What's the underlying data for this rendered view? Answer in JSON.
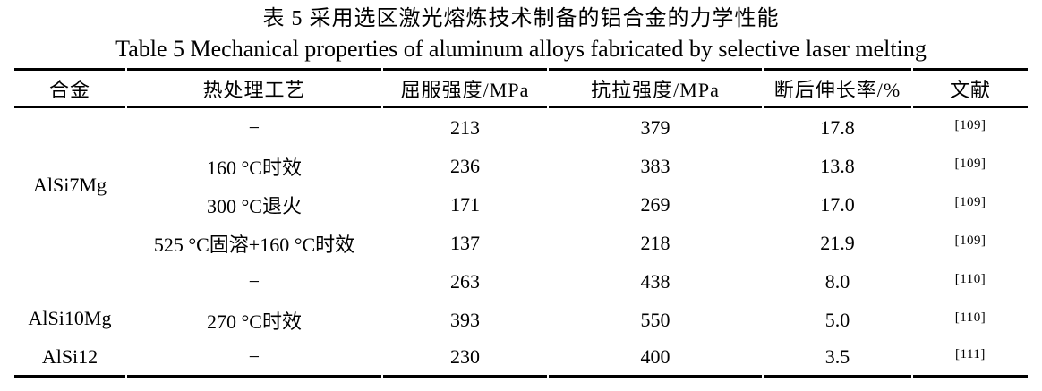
{
  "captions": {
    "zh": "表 5 采用选区激光熔炼技术制备的铝合金的力学性能",
    "en": "Table 5 Mechanical properties of aluminum alloys fabricated by selective laser melting"
  },
  "colors": {
    "text": "#000000",
    "background": "#ffffff",
    "rule": "#000000"
  },
  "table": {
    "headers": [
      "合金",
      "热处理工艺",
      "屈服强度/MPa",
      "抗拉强度/MPa",
      "断后伸长率/%",
      "文献"
    ],
    "alloys": [
      {
        "name": "AlSi7Mg",
        "rowspan": 4
      },
      {
        "name": "AlSi10Mg",
        "rowspan": 2
      },
      {
        "name": "AlSi12",
        "rowspan": 1
      }
    ],
    "rows": [
      {
        "treatment": "−",
        "yield_mpa": "213",
        "tensile_mpa": "379",
        "elongation_pct": "17.8",
        "reference": "[109]"
      },
      {
        "treatment": "160 °C时效",
        "yield_mpa": "236",
        "tensile_mpa": "383",
        "elongation_pct": "13.8",
        "reference": "[109]"
      },
      {
        "treatment": "300 °C退火",
        "yield_mpa": "171",
        "tensile_mpa": "269",
        "elongation_pct": "17.0",
        "reference": "[109]"
      },
      {
        "treatment": "525 °C固溶+160 °C时效",
        "yield_mpa": "137",
        "tensile_mpa": "218",
        "elongation_pct": "21.9",
        "reference": "[109]"
      },
      {
        "treatment": "−",
        "yield_mpa": "263",
        "tensile_mpa": "438",
        "elongation_pct": "8.0",
        "reference": "[110]"
      },
      {
        "treatment": "270 °C时效",
        "yield_mpa": "393",
        "tensile_mpa": "550",
        "elongation_pct": "5.0",
        "reference": "[110]"
      },
      {
        "treatment": "−",
        "yield_mpa": "230",
        "tensile_mpa": "400",
        "elongation_pct": "3.5",
        "reference": "[111]"
      }
    ]
  }
}
